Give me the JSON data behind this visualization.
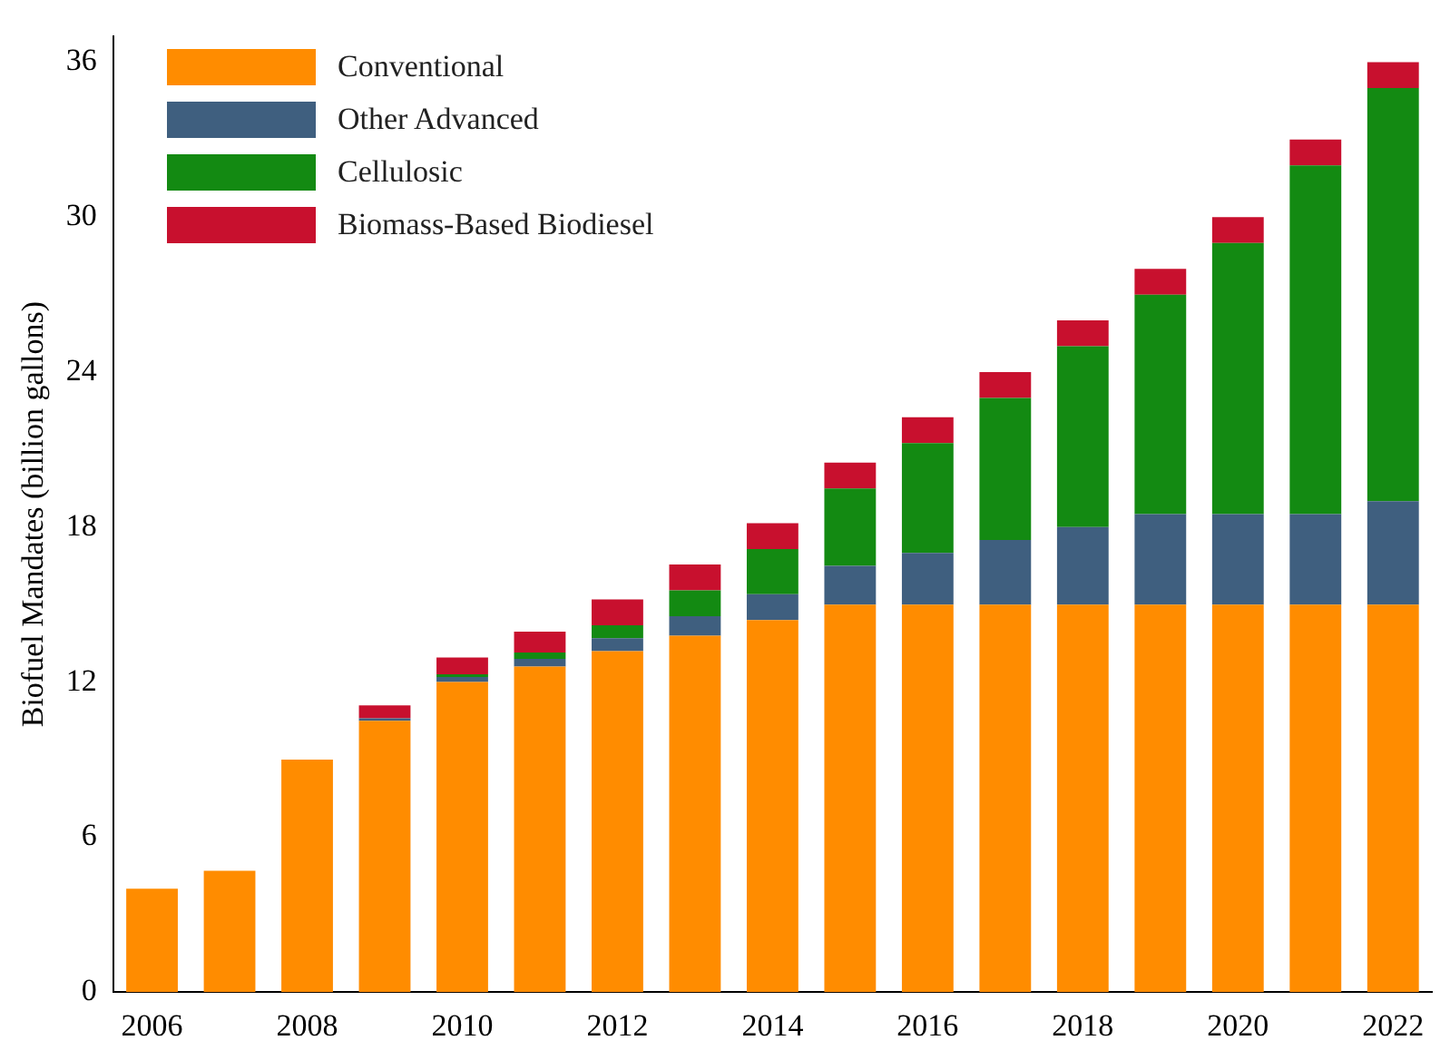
{
  "chart_data": {
    "type": "bar",
    "stacked": true,
    "ylabel": "Biofuel Mandates (billion gallons)",
    "categories": [
      "2006",
      null,
      "2008",
      null,
      "2010",
      null,
      "2012",
      null,
      "2014",
      null,
      "2016",
      null,
      "2018",
      null,
      "2020",
      null,
      "2022"
    ],
    "series": [
      {
        "name": "Conventional",
        "color": "#ff8c00",
        "values": [
          4.0,
          4.7,
          9.0,
          10.5,
          12.0,
          12.6,
          13.2,
          13.8,
          14.4,
          15.0,
          15.0,
          15.0,
          15.0,
          15.0,
          15.0,
          15.0,
          15.0
        ]
      },
      {
        "name": "Other Advanced",
        "color": "#3f5f7f",
        "values": [
          null,
          null,
          null,
          0.1,
          0.2,
          0.3,
          0.5,
          0.75,
          1.0,
          1.5,
          2.0,
          2.5,
          3.0,
          3.5,
          3.5,
          3.5,
          4.0
        ]
      },
      {
        "name": "Cellulosic",
        "color": "#138a12",
        "values": [
          null,
          null,
          null,
          null,
          0.1,
          0.25,
          0.5,
          1.0,
          1.75,
          3.0,
          4.25,
          5.5,
          7.0,
          8.5,
          10.5,
          13.5,
          16.0
        ]
      },
      {
        "name": "Biomass-Based Biodiesel",
        "color": "#c8102e",
        "values": [
          null,
          null,
          null,
          0.5,
          0.65,
          0.8,
          1.0,
          1.0,
          1.0,
          1.0,
          1.0,
          1.0,
          1.0,
          1.0,
          1.0,
          1.0,
          1.0
        ]
      }
    ],
    "ylim": [
      0,
      37
    ],
    "yticks": [
      0,
      6,
      12,
      18,
      24,
      30,
      36
    ],
    "grid": false,
    "legend": "top left"
  }
}
